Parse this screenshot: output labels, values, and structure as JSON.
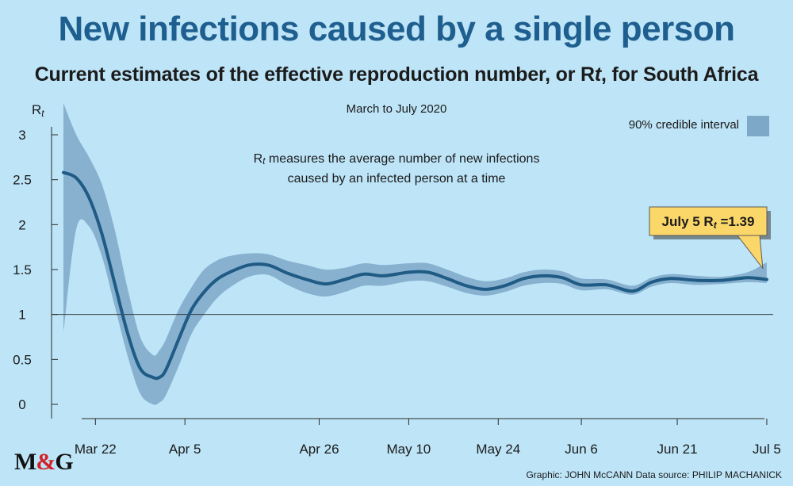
{
  "title": "New infections caused by a single person",
  "subtitle_parts": [
    "Current estimates of the effective reproduction number, or R",
    "t",
    ", for South Africa"
  ],
  "logo": {
    "text_a": "M",
    "amp": "&",
    "text_b": "G"
  },
  "credit": "Graphic: JOHN McCANN  Data source: PHILIP MACHANICK",
  "colors": {
    "background": "#bde4f7",
    "line": "#1f5b85",
    "band": "#7ea8c8",
    "title": "#1f5f8f",
    "callout_bg": "#fbd769"
  },
  "chart_data": {
    "type": "line",
    "period_label": "March to July 2020",
    "description_lines": [
      "R",
      "t",
      " measures the average number of new infections",
      "caused by an infected person at a time"
    ],
    "ylabel_parts": [
      "R",
      "t"
    ],
    "ylim": [
      0,
      3
    ],
    "yticks": [
      0,
      0.5,
      1,
      1.5,
      2,
      2.5,
      3
    ],
    "ytick_labels": [
      "0",
      "0.5",
      "1",
      "1.5",
      "2",
      "2.5",
      "3"
    ],
    "xlim": [
      "2020-03-17",
      "2020-07-06"
    ],
    "xticks": [
      {
        "date": "2020-03-22",
        "label": "Mar 22"
      },
      {
        "date": "2020-04-05",
        "label": "Apr 5"
      },
      {
        "date": "2020-04-26",
        "label": "Apr 26"
      },
      {
        "date": "2020-05-10",
        "label": "May 10"
      },
      {
        "date": "2020-05-24",
        "label": "May 24"
      },
      {
        "date": "2020-06-06",
        "label": "Jun 6"
      },
      {
        "date": "2020-06-21",
        "label": "Jun 21"
      },
      {
        "date": "2020-07-05",
        "label": "Jul 5"
      }
    ],
    "reference_line": 1,
    "legend": {
      "label": "90% credible interval",
      "placement": "top-right"
    },
    "annotation": {
      "label_a": "July 5  R",
      "label_t": "t",
      "label_b": " =1.39",
      "date": "2020-07-05",
      "value": 1.39
    },
    "series": [
      {
        "name": "Rt",
        "x": [
          "2020-03-17",
          "2020-03-19",
          "2020-03-21",
          "2020-03-23",
          "2020-03-25",
          "2020-03-27",
          "2020-03-29",
          "2020-03-31",
          "2020-04-01",
          "2020-04-02",
          "2020-04-04",
          "2020-04-06",
          "2020-04-08",
          "2020-04-10",
          "2020-04-12",
          "2020-04-15",
          "2020-04-18",
          "2020-04-21",
          "2020-04-24",
          "2020-04-27",
          "2020-04-30",
          "2020-05-03",
          "2020-05-06",
          "2020-05-10",
          "2020-05-13",
          "2020-05-16",
          "2020-05-19",
          "2020-05-22",
          "2020-05-25",
          "2020-05-28",
          "2020-05-31",
          "2020-06-03",
          "2020-06-06",
          "2020-06-10",
          "2020-06-14",
          "2020-06-17",
          "2020-06-20",
          "2020-06-24",
          "2020-06-28",
          "2020-07-02",
          "2020-07-05"
        ],
        "y": [
          2.58,
          2.52,
          2.3,
          1.9,
          1.35,
          0.8,
          0.4,
          0.3,
          0.3,
          0.38,
          0.72,
          1.05,
          1.25,
          1.39,
          1.47,
          1.55,
          1.55,
          1.46,
          1.39,
          1.34,
          1.39,
          1.45,
          1.43,
          1.47,
          1.47,
          1.4,
          1.32,
          1.28,
          1.32,
          1.4,
          1.43,
          1.41,
          1.33,
          1.33,
          1.26,
          1.36,
          1.4,
          1.38,
          1.38,
          1.41,
          1.39
        ]
      },
      {
        "name": "90% credible interval",
        "x": [
          "2020-03-17",
          "2020-03-19",
          "2020-03-21",
          "2020-03-23",
          "2020-03-25",
          "2020-03-27",
          "2020-03-29",
          "2020-03-31",
          "2020-04-01",
          "2020-04-02",
          "2020-04-04",
          "2020-04-06",
          "2020-04-08",
          "2020-04-10",
          "2020-04-12",
          "2020-04-15",
          "2020-04-18",
          "2020-04-21",
          "2020-04-24",
          "2020-04-27",
          "2020-04-30",
          "2020-05-03",
          "2020-05-06",
          "2020-05-10",
          "2020-05-13",
          "2020-05-16",
          "2020-05-19",
          "2020-05-22",
          "2020-05-25",
          "2020-05-28",
          "2020-05-31",
          "2020-06-03",
          "2020-06-06",
          "2020-06-10",
          "2020-06-14",
          "2020-06-17",
          "2020-06-20",
          "2020-06-24",
          "2020-06-28",
          "2020-07-02",
          "2020-07-05"
        ],
        "lower": [
          0.8,
          1.95,
          1.98,
          1.65,
          1.1,
          0.55,
          0.12,
          0.0,
          0.02,
          0.1,
          0.42,
          0.78,
          1.0,
          1.18,
          1.3,
          1.42,
          1.44,
          1.33,
          1.24,
          1.2,
          1.25,
          1.32,
          1.32,
          1.37,
          1.37,
          1.31,
          1.24,
          1.21,
          1.25,
          1.32,
          1.35,
          1.34,
          1.27,
          1.28,
          1.22,
          1.31,
          1.35,
          1.33,
          1.34,
          1.36,
          1.35
        ],
        "upper": [
          3.35,
          3.0,
          2.75,
          2.45,
          1.95,
          1.3,
          0.75,
          0.55,
          0.6,
          0.72,
          1.05,
          1.3,
          1.5,
          1.6,
          1.65,
          1.68,
          1.67,
          1.6,
          1.55,
          1.5,
          1.52,
          1.57,
          1.55,
          1.57,
          1.57,
          1.5,
          1.42,
          1.37,
          1.4,
          1.47,
          1.5,
          1.48,
          1.4,
          1.39,
          1.32,
          1.41,
          1.45,
          1.43,
          1.42,
          1.47,
          1.58
        ]
      }
    ]
  }
}
